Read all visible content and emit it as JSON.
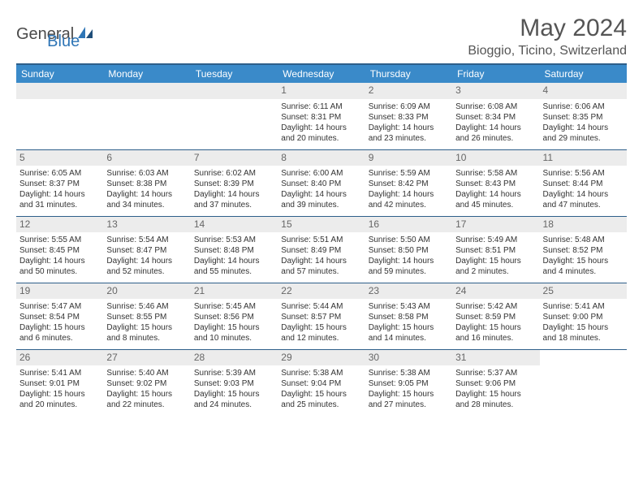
{
  "logo": {
    "text_gray": "General",
    "text_blue": "Blue"
  },
  "title": "May 2024",
  "location": "Bioggio, Ticino, Switzerland",
  "header_bg": "#3a8ac9",
  "border_color": "#2e5f8a",
  "daynum_bg": "#ececec",
  "days_of_week": [
    "Sunday",
    "Monday",
    "Tuesday",
    "Wednesday",
    "Thursday",
    "Friday",
    "Saturday"
  ],
  "weeks": [
    [
      null,
      null,
      null,
      {
        "n": "1",
        "sr": "6:11 AM",
        "ss": "8:31 PM",
        "dl": "14 hours and 20 minutes."
      },
      {
        "n": "2",
        "sr": "6:09 AM",
        "ss": "8:33 PM",
        "dl": "14 hours and 23 minutes."
      },
      {
        "n": "3",
        "sr": "6:08 AM",
        "ss": "8:34 PM",
        "dl": "14 hours and 26 minutes."
      },
      {
        "n": "4",
        "sr": "6:06 AM",
        "ss": "8:35 PM",
        "dl": "14 hours and 29 minutes."
      }
    ],
    [
      {
        "n": "5",
        "sr": "6:05 AM",
        "ss": "8:37 PM",
        "dl": "14 hours and 31 minutes."
      },
      {
        "n": "6",
        "sr": "6:03 AM",
        "ss": "8:38 PM",
        "dl": "14 hours and 34 minutes."
      },
      {
        "n": "7",
        "sr": "6:02 AM",
        "ss": "8:39 PM",
        "dl": "14 hours and 37 minutes."
      },
      {
        "n": "8",
        "sr": "6:00 AM",
        "ss": "8:40 PM",
        "dl": "14 hours and 39 minutes."
      },
      {
        "n": "9",
        "sr": "5:59 AM",
        "ss": "8:42 PM",
        "dl": "14 hours and 42 minutes."
      },
      {
        "n": "10",
        "sr": "5:58 AM",
        "ss": "8:43 PM",
        "dl": "14 hours and 45 minutes."
      },
      {
        "n": "11",
        "sr": "5:56 AM",
        "ss": "8:44 PM",
        "dl": "14 hours and 47 minutes."
      }
    ],
    [
      {
        "n": "12",
        "sr": "5:55 AM",
        "ss": "8:45 PM",
        "dl": "14 hours and 50 minutes."
      },
      {
        "n": "13",
        "sr": "5:54 AM",
        "ss": "8:47 PM",
        "dl": "14 hours and 52 minutes."
      },
      {
        "n": "14",
        "sr": "5:53 AM",
        "ss": "8:48 PM",
        "dl": "14 hours and 55 minutes."
      },
      {
        "n": "15",
        "sr": "5:51 AM",
        "ss": "8:49 PM",
        "dl": "14 hours and 57 minutes."
      },
      {
        "n": "16",
        "sr": "5:50 AM",
        "ss": "8:50 PM",
        "dl": "14 hours and 59 minutes."
      },
      {
        "n": "17",
        "sr": "5:49 AM",
        "ss": "8:51 PM",
        "dl": "15 hours and 2 minutes."
      },
      {
        "n": "18",
        "sr": "5:48 AM",
        "ss": "8:52 PM",
        "dl": "15 hours and 4 minutes."
      }
    ],
    [
      {
        "n": "19",
        "sr": "5:47 AM",
        "ss": "8:54 PM",
        "dl": "15 hours and 6 minutes."
      },
      {
        "n": "20",
        "sr": "5:46 AM",
        "ss": "8:55 PM",
        "dl": "15 hours and 8 minutes."
      },
      {
        "n": "21",
        "sr": "5:45 AM",
        "ss": "8:56 PM",
        "dl": "15 hours and 10 minutes."
      },
      {
        "n": "22",
        "sr": "5:44 AM",
        "ss": "8:57 PM",
        "dl": "15 hours and 12 minutes."
      },
      {
        "n": "23",
        "sr": "5:43 AM",
        "ss": "8:58 PM",
        "dl": "15 hours and 14 minutes."
      },
      {
        "n": "24",
        "sr": "5:42 AM",
        "ss": "8:59 PM",
        "dl": "15 hours and 16 minutes."
      },
      {
        "n": "25",
        "sr": "5:41 AM",
        "ss": "9:00 PM",
        "dl": "15 hours and 18 minutes."
      }
    ],
    [
      {
        "n": "26",
        "sr": "5:41 AM",
        "ss": "9:01 PM",
        "dl": "15 hours and 20 minutes."
      },
      {
        "n": "27",
        "sr": "5:40 AM",
        "ss": "9:02 PM",
        "dl": "15 hours and 22 minutes."
      },
      {
        "n": "28",
        "sr": "5:39 AM",
        "ss": "9:03 PM",
        "dl": "15 hours and 24 minutes."
      },
      {
        "n": "29",
        "sr": "5:38 AM",
        "ss": "9:04 PM",
        "dl": "15 hours and 25 minutes."
      },
      {
        "n": "30",
        "sr": "5:38 AM",
        "ss": "9:05 PM",
        "dl": "15 hours and 27 minutes."
      },
      {
        "n": "31",
        "sr": "5:37 AM",
        "ss": "9:06 PM",
        "dl": "15 hours and 28 minutes."
      },
      null
    ]
  ],
  "labels": {
    "sunrise": "Sunrise:",
    "sunset": "Sunset:",
    "daylight": "Daylight:"
  }
}
